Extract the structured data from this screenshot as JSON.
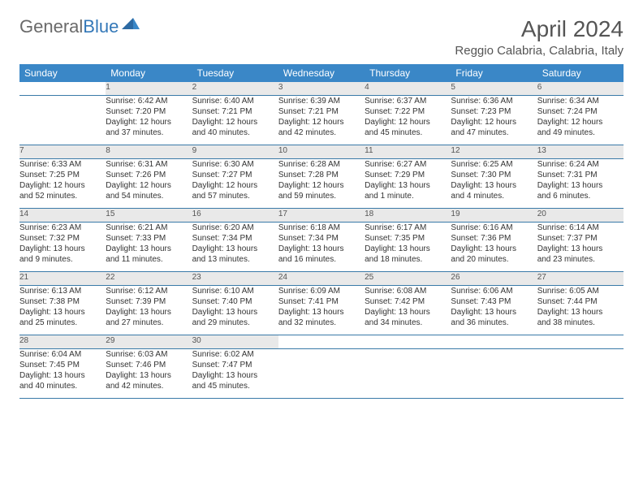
{
  "logo": {
    "text1": "General",
    "text2": "Blue"
  },
  "title": "April 2024",
  "location": "Reggio Calabria, Calabria, Italy",
  "weekdays": [
    "Sunday",
    "Monday",
    "Tuesday",
    "Wednesday",
    "Thursday",
    "Friday",
    "Saturday"
  ],
  "colors": {
    "header_bg": "#3a87c7",
    "daynum_bg": "#e9e9e9",
    "rule": "#3a7aa8",
    "logo_gray": "#6a6a6a",
    "logo_blue": "#3478b8"
  },
  "weeks": [
    {
      "nums": [
        "",
        "1",
        "2",
        "3",
        "4",
        "5",
        "6"
      ],
      "cells": [
        null,
        {
          "sr": "Sunrise: 6:42 AM",
          "ss": "Sunset: 7:20 PM",
          "d1": "Daylight: 12 hours",
          "d2": "and 37 minutes."
        },
        {
          "sr": "Sunrise: 6:40 AM",
          "ss": "Sunset: 7:21 PM",
          "d1": "Daylight: 12 hours",
          "d2": "and 40 minutes."
        },
        {
          "sr": "Sunrise: 6:39 AM",
          "ss": "Sunset: 7:21 PM",
          "d1": "Daylight: 12 hours",
          "d2": "and 42 minutes."
        },
        {
          "sr": "Sunrise: 6:37 AM",
          "ss": "Sunset: 7:22 PM",
          "d1": "Daylight: 12 hours",
          "d2": "and 45 minutes."
        },
        {
          "sr": "Sunrise: 6:36 AM",
          "ss": "Sunset: 7:23 PM",
          "d1": "Daylight: 12 hours",
          "d2": "and 47 minutes."
        },
        {
          "sr": "Sunrise: 6:34 AM",
          "ss": "Sunset: 7:24 PM",
          "d1": "Daylight: 12 hours",
          "d2": "and 49 minutes."
        }
      ]
    },
    {
      "nums": [
        "7",
        "8",
        "9",
        "10",
        "11",
        "12",
        "13"
      ],
      "cells": [
        {
          "sr": "Sunrise: 6:33 AM",
          "ss": "Sunset: 7:25 PM",
          "d1": "Daylight: 12 hours",
          "d2": "and 52 minutes."
        },
        {
          "sr": "Sunrise: 6:31 AM",
          "ss": "Sunset: 7:26 PM",
          "d1": "Daylight: 12 hours",
          "d2": "and 54 minutes."
        },
        {
          "sr": "Sunrise: 6:30 AM",
          "ss": "Sunset: 7:27 PM",
          "d1": "Daylight: 12 hours",
          "d2": "and 57 minutes."
        },
        {
          "sr": "Sunrise: 6:28 AM",
          "ss": "Sunset: 7:28 PM",
          "d1": "Daylight: 12 hours",
          "d2": "and 59 minutes."
        },
        {
          "sr": "Sunrise: 6:27 AM",
          "ss": "Sunset: 7:29 PM",
          "d1": "Daylight: 13 hours",
          "d2": "and 1 minute."
        },
        {
          "sr": "Sunrise: 6:25 AM",
          "ss": "Sunset: 7:30 PM",
          "d1": "Daylight: 13 hours",
          "d2": "and 4 minutes."
        },
        {
          "sr": "Sunrise: 6:24 AM",
          "ss": "Sunset: 7:31 PM",
          "d1": "Daylight: 13 hours",
          "d2": "and 6 minutes."
        }
      ]
    },
    {
      "nums": [
        "14",
        "15",
        "16",
        "17",
        "18",
        "19",
        "20"
      ],
      "cells": [
        {
          "sr": "Sunrise: 6:23 AM",
          "ss": "Sunset: 7:32 PM",
          "d1": "Daylight: 13 hours",
          "d2": "and 9 minutes."
        },
        {
          "sr": "Sunrise: 6:21 AM",
          "ss": "Sunset: 7:33 PM",
          "d1": "Daylight: 13 hours",
          "d2": "and 11 minutes."
        },
        {
          "sr": "Sunrise: 6:20 AM",
          "ss": "Sunset: 7:34 PM",
          "d1": "Daylight: 13 hours",
          "d2": "and 13 minutes."
        },
        {
          "sr": "Sunrise: 6:18 AM",
          "ss": "Sunset: 7:34 PM",
          "d1": "Daylight: 13 hours",
          "d2": "and 16 minutes."
        },
        {
          "sr": "Sunrise: 6:17 AM",
          "ss": "Sunset: 7:35 PM",
          "d1": "Daylight: 13 hours",
          "d2": "and 18 minutes."
        },
        {
          "sr": "Sunrise: 6:16 AM",
          "ss": "Sunset: 7:36 PM",
          "d1": "Daylight: 13 hours",
          "d2": "and 20 minutes."
        },
        {
          "sr": "Sunrise: 6:14 AM",
          "ss": "Sunset: 7:37 PM",
          "d1": "Daylight: 13 hours",
          "d2": "and 23 minutes."
        }
      ]
    },
    {
      "nums": [
        "21",
        "22",
        "23",
        "24",
        "25",
        "26",
        "27"
      ],
      "cells": [
        {
          "sr": "Sunrise: 6:13 AM",
          "ss": "Sunset: 7:38 PM",
          "d1": "Daylight: 13 hours",
          "d2": "and 25 minutes."
        },
        {
          "sr": "Sunrise: 6:12 AM",
          "ss": "Sunset: 7:39 PM",
          "d1": "Daylight: 13 hours",
          "d2": "and 27 minutes."
        },
        {
          "sr": "Sunrise: 6:10 AM",
          "ss": "Sunset: 7:40 PM",
          "d1": "Daylight: 13 hours",
          "d2": "and 29 minutes."
        },
        {
          "sr": "Sunrise: 6:09 AM",
          "ss": "Sunset: 7:41 PM",
          "d1": "Daylight: 13 hours",
          "d2": "and 32 minutes."
        },
        {
          "sr": "Sunrise: 6:08 AM",
          "ss": "Sunset: 7:42 PM",
          "d1": "Daylight: 13 hours",
          "d2": "and 34 minutes."
        },
        {
          "sr": "Sunrise: 6:06 AM",
          "ss": "Sunset: 7:43 PM",
          "d1": "Daylight: 13 hours",
          "d2": "and 36 minutes."
        },
        {
          "sr": "Sunrise: 6:05 AM",
          "ss": "Sunset: 7:44 PM",
          "d1": "Daylight: 13 hours",
          "d2": "and 38 minutes."
        }
      ]
    },
    {
      "nums": [
        "28",
        "29",
        "30",
        "",
        "",
        "",
        ""
      ],
      "cells": [
        {
          "sr": "Sunrise: 6:04 AM",
          "ss": "Sunset: 7:45 PM",
          "d1": "Daylight: 13 hours",
          "d2": "and 40 minutes."
        },
        {
          "sr": "Sunrise: 6:03 AM",
          "ss": "Sunset: 7:46 PM",
          "d1": "Daylight: 13 hours",
          "d2": "and 42 minutes."
        },
        {
          "sr": "Sunrise: 6:02 AM",
          "ss": "Sunset: 7:47 PM",
          "d1": "Daylight: 13 hours",
          "d2": "and 45 minutes."
        },
        null,
        null,
        null,
        null
      ]
    }
  ]
}
